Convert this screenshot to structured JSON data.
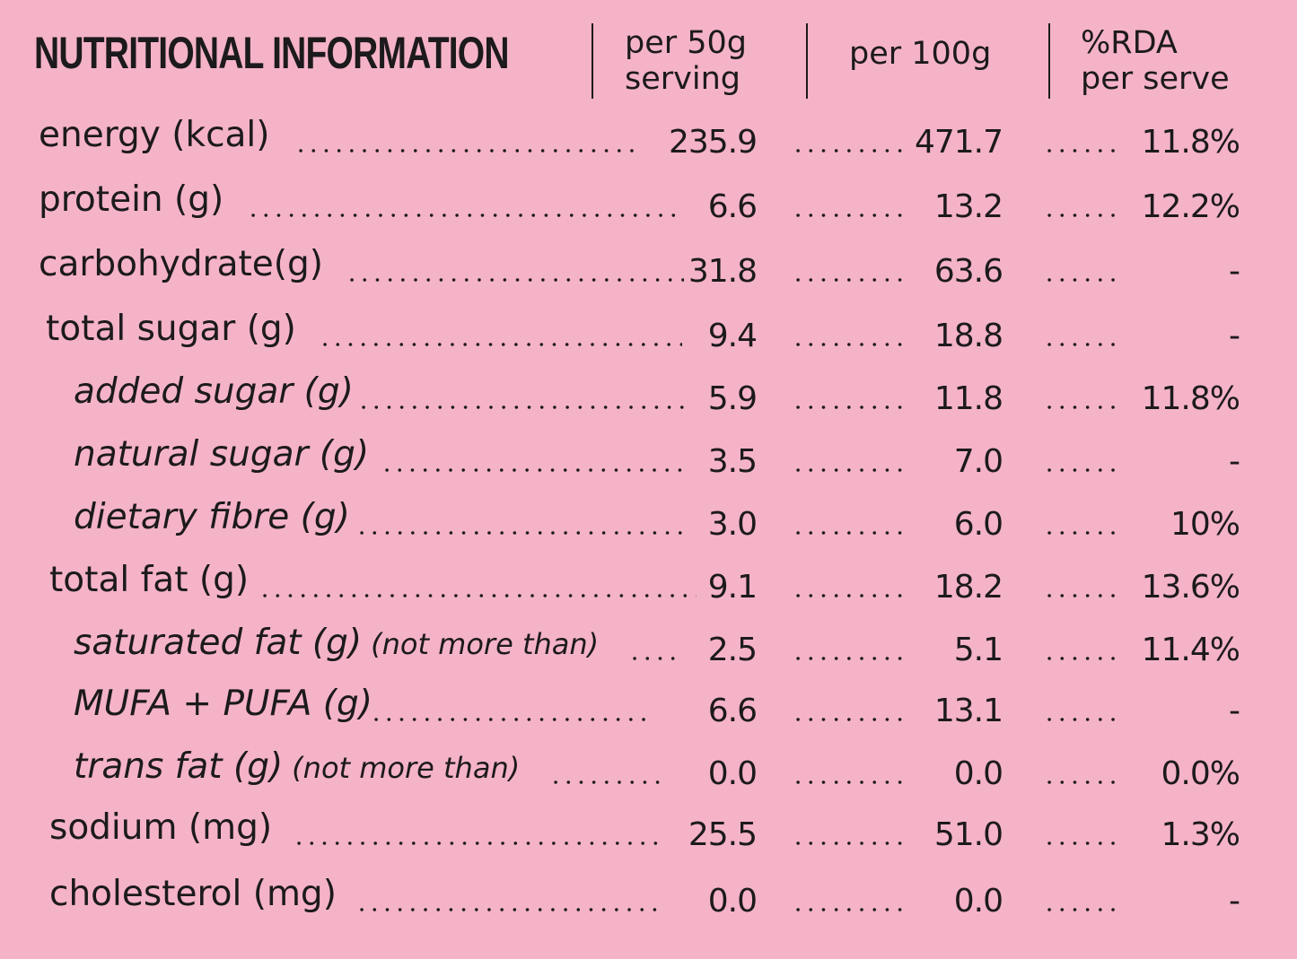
{
  "header": {
    "title": "NUTRITIONAL INFORMATION",
    "col1_line1": "per 50g",
    "col1_line2": "serving",
    "col2": "per 100g",
    "col3_line1": "%RDA",
    "col3_line2": "per serve"
  },
  "rows": [
    {
      "label": "energy (kcal)",
      "note": "",
      "per50": "235.9",
      "per100": "471.7",
      "rda": "11.8%"
    },
    {
      "label": "protein (g)",
      "note": "",
      "per50": "6.6",
      "per100": "13.2",
      "rda": "12.2%"
    },
    {
      "label": "carbohydrate(g)",
      "note": "",
      "per50": "31.8",
      "per100": "63.6",
      "rda": "-"
    },
    {
      "label": "total sugar (g)",
      "note": "",
      "per50": "9.4",
      "per100": "18.8",
      "rda": "-"
    },
    {
      "label": "added sugar (g)",
      "note": "",
      "per50": "5.9",
      "per100": "11.8",
      "rda": "11.8%"
    },
    {
      "label": "natural sugar (g)",
      "note": "",
      "per50": "3.5",
      "per100": "7.0",
      "rda": "-"
    },
    {
      "label": "dietary fibre (g)",
      "note": "",
      "per50": "3.0",
      "per100": "6.0",
      "rda": "10%"
    },
    {
      "label": "total fat (g)",
      "note": "",
      "per50": "9.1",
      "per100": "18.2",
      "rda": "13.6%"
    },
    {
      "label": "saturated fat (g)",
      "note": "(not more than)",
      "per50": "2.5",
      "per100": "5.1",
      "rda": "11.4%"
    },
    {
      "label": "MUFA + PUFA (g)",
      "note": "",
      "per50": "6.6",
      "per100": "13.1",
      "rda": "-"
    },
    {
      "label": "trans fat (g)",
      "note": "(not more than)",
      "per50": "0.0",
      "per100": "0.0",
      "rda": "0.0%"
    },
    {
      "label": "sodium (mg)",
      "note": "",
      "per50": "25.5",
      "per100": "51.0",
      "rda": "1.3%"
    },
    {
      "label": "cholesterol (mg)",
      "note": "",
      "per50": "0.0",
      "per100": "0.0",
      "rda": "-"
    }
  ]
}
